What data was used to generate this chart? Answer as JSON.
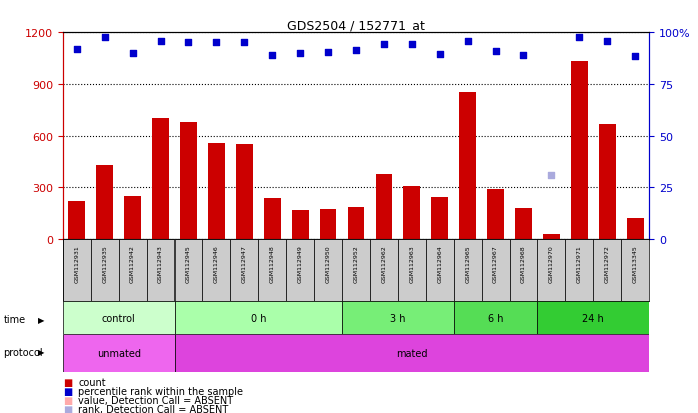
{
  "title": "GDS2504 / 152771_at",
  "samples": [
    "GSM112931",
    "GSM112935",
    "GSM112942",
    "GSM112943",
    "GSM112945",
    "GSM112946",
    "GSM112947",
    "GSM112948",
    "GSM112949",
    "GSM112950",
    "GSM112952",
    "GSM112962",
    "GSM112963",
    "GSM112964",
    "GSM112965",
    "GSM112967",
    "GSM112968",
    "GSM112970",
    "GSM112971",
    "GSM112972",
    "GSM113345"
  ],
  "bar_values": [
    220,
    430,
    250,
    700,
    680,
    560,
    550,
    240,
    170,
    175,
    185,
    380,
    310,
    245,
    850,
    290,
    180,
    30,
    1030,
    670,
    120
  ],
  "dot_values": [
    1100,
    1170,
    1080,
    1150,
    1145,
    1140,
    1145,
    1065,
    1080,
    1085,
    1095,
    1130,
    1130,
    1075,
    1150,
    1090,
    1065,
    1060,
    1170,
    1150,
    1060
  ],
  "absent_dot_indices": [
    17
  ],
  "absent_dot_values": [
    370
  ],
  "ylim_left": [
    0,
    1200
  ],
  "ylim_right": [
    0,
    100
  ],
  "yticks_left": [
    0,
    300,
    600,
    900,
    1200
  ],
  "yticks_right": [
    0,
    25,
    50,
    75,
    100
  ],
  "bar_color": "#cc0000",
  "dot_color": "#0000cc",
  "absent_bar_color": "#ffaaaa",
  "absent_dot_color": "#aaaadd",
  "time_groups": [
    {
      "label": "control",
      "start": 0,
      "end": 4,
      "color": "#ccffcc"
    },
    {
      "label": "0 h",
      "start": 4,
      "end": 10,
      "color": "#aaffaa"
    },
    {
      "label": "3 h",
      "start": 10,
      "end": 14,
      "color": "#77ee77"
    },
    {
      "label": "6 h",
      "start": 14,
      "end": 17,
      "color": "#55dd55"
    },
    {
      "label": "24 h",
      "start": 17,
      "end": 21,
      "color": "#33cc33"
    }
  ],
  "protocol_groups": [
    {
      "label": "unmated",
      "start": 0,
      "end": 4,
      "color": "#ee66ee"
    },
    {
      "label": "mated",
      "start": 4,
      "end": 21,
      "color": "#dd44dd"
    }
  ],
  "bg_color": "#ffffff",
  "right_axis_color": "#0000cc",
  "left_axis_color": "#cc0000"
}
